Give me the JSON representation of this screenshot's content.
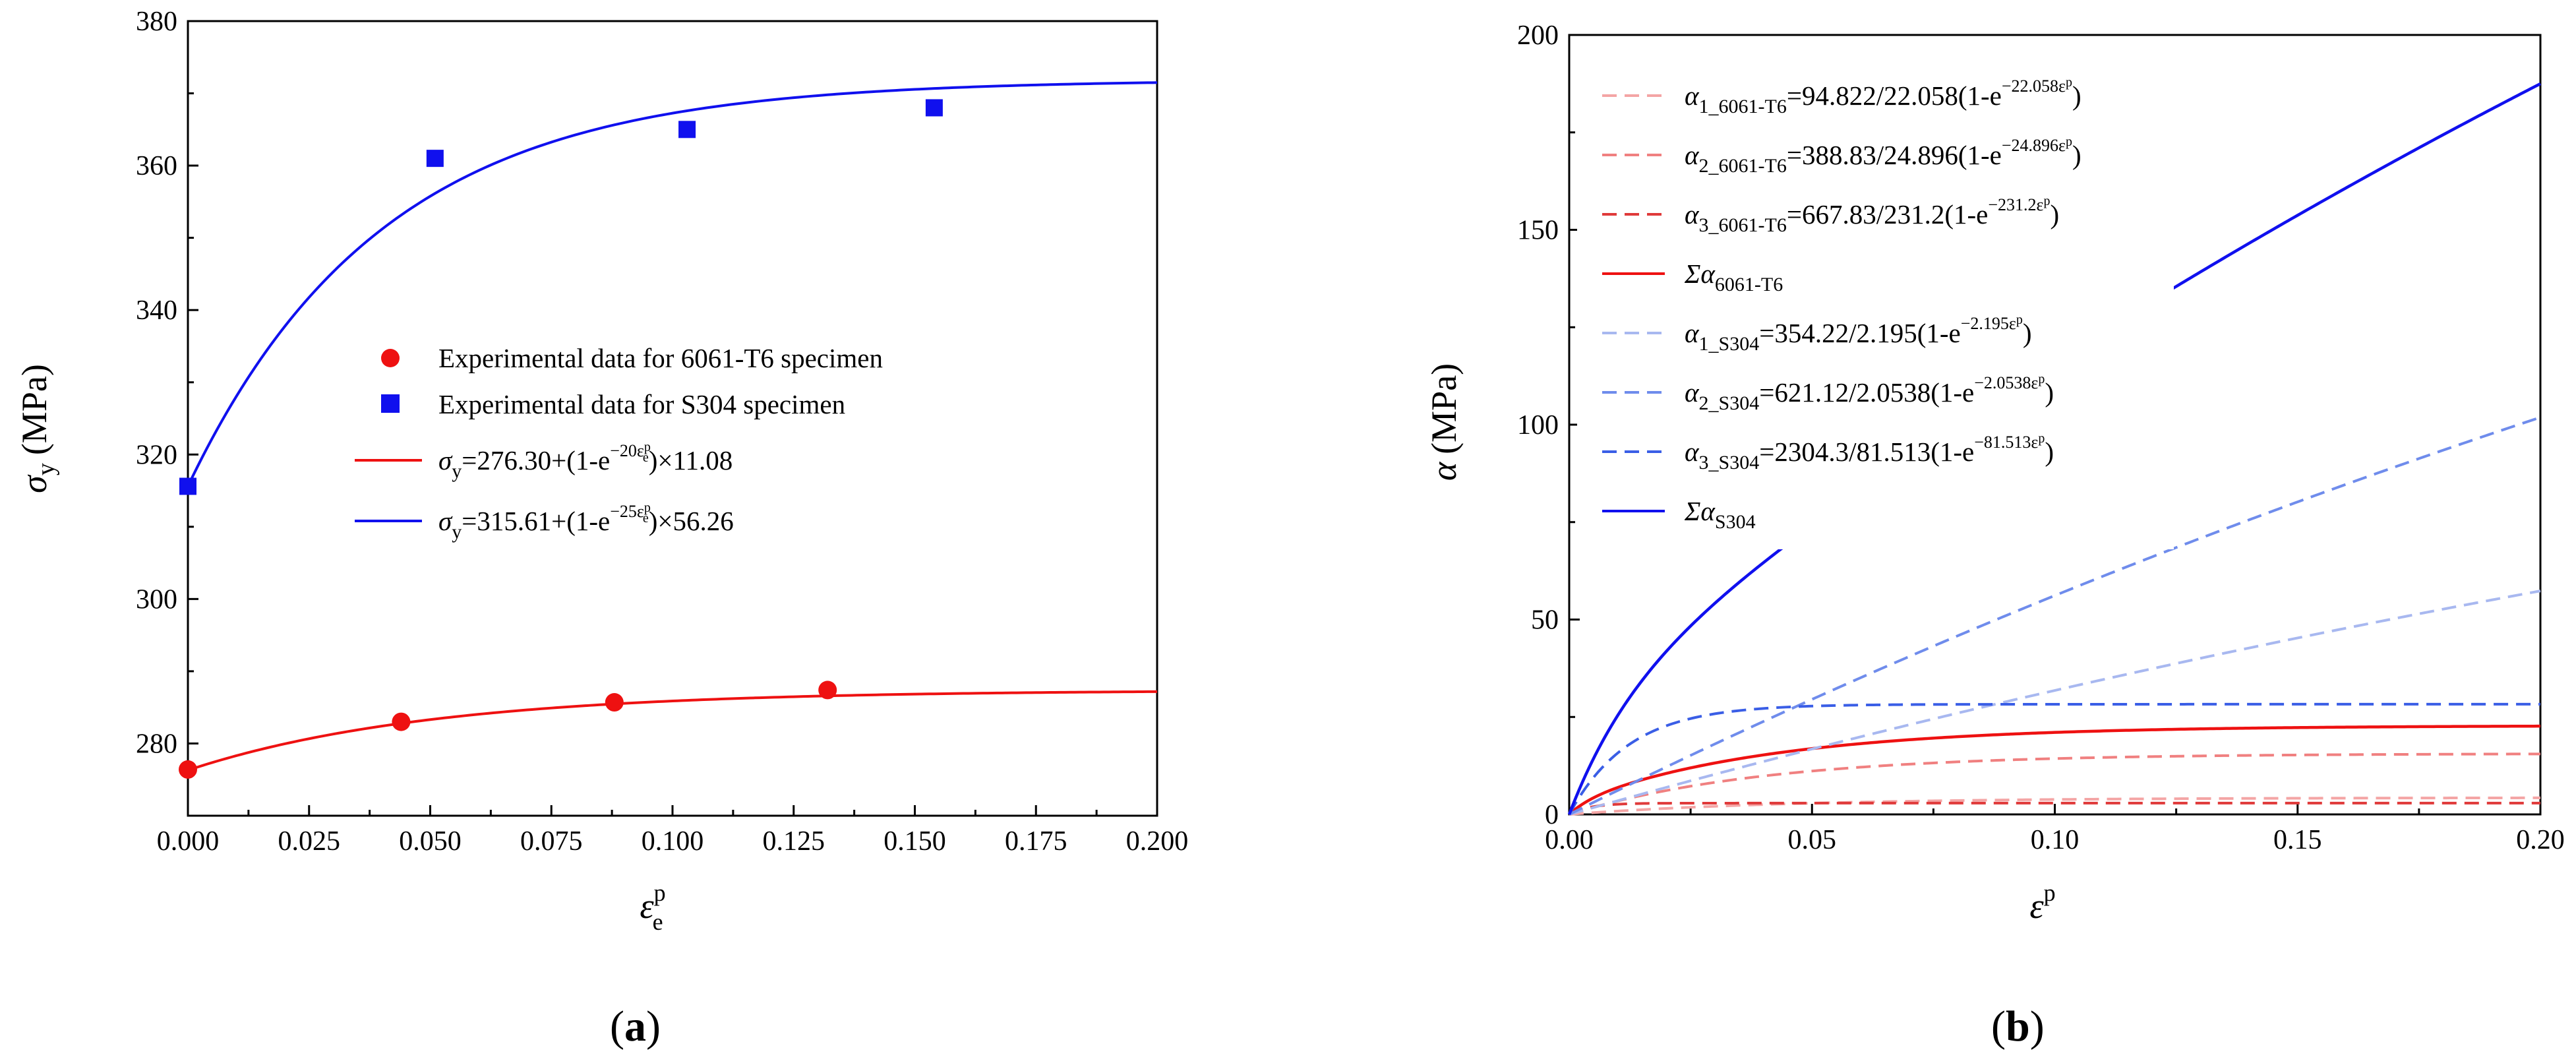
{
  "chart_data": [
    {
      "id": "a",
      "type": "scatter",
      "panel_label": "a",
      "xlabel": "ε_e^p",
      "ylabel": "σ_y (MPa)",
      "xlim": [
        0.0,
        0.2
      ],
      "ylim": [
        270,
        380
      ],
      "x_ticks": [
        "0.000",
        "0.025",
        "0.050",
        "0.075",
        "0.100",
        "0.125",
        "0.150",
        "0.175",
        "0.200"
      ],
      "y_ticks": [
        "280",
        "300",
        "320",
        "340",
        "360",
        "380"
      ],
      "legend_position": "center",
      "series": [
        {
          "name": "Experimental data for 6061-T6 specimen",
          "kind": "points",
          "marker": "circle",
          "color": "#ee1111",
          "x": [
            0.0,
            0.044,
            0.088,
            0.132
          ],
          "y": [
            276.4,
            283.0,
            285.7,
            287.4
          ]
        },
        {
          "name": "Experimental data for S304 specimen",
          "kind": "points",
          "marker": "square",
          "color": "#1010ee",
          "x": [
            0.0,
            0.051,
            0.103,
            0.154
          ],
          "y": [
            315.6,
            361.0,
            365.0,
            368.0
          ]
        },
        {
          "name": "σy=276.30+(1-e^(-20εe^p))×11.08",
          "kind": "fit",
          "color": "#ee1111",
          "base": 276.3,
          "amp": 11.08,
          "rate": 20
        },
        {
          "name": "σy=315.61+(1-e^(-25εe^p))×56.26",
          "kind": "fit",
          "color": "#1010ee",
          "base": 315.61,
          "amp": 56.26,
          "rate": 25
        }
      ],
      "legend": {
        "items": [
          "Experimental data for 6061-T6 specimen",
          "Experimental data for S304 specimen"
        ],
        "fit1": {
          "sym": "σ",
          "sub": "y",
          "eq": "=276.30+(1-e",
          "sup_exp": "−20ε",
          "sup_p": "p",
          "sup_e": "e",
          "tail": ")×11.08"
        },
        "fit2": {
          "sym": "σ",
          "sub": "y",
          "eq": "=315.61+(1-e",
          "sup_exp": "−25ε",
          "sup_p": "p",
          "sup_e": "e",
          "tail": ")×56.26"
        }
      },
      "xlabel_parts": {
        "sym": "ε",
        "sup": "p",
        "sub": "e"
      },
      "ylabel_parts": {
        "sym": "σ",
        "sub": "y",
        "unit": "(MPa)"
      }
    },
    {
      "id": "b",
      "type": "line",
      "panel_label": "b",
      "xlabel": "ε^p",
      "ylabel": "α (MPa)",
      "xlim": [
        0.0,
        0.2
      ],
      "ylim": [
        0,
        200
      ],
      "x_ticks": [
        "0.00",
        "0.05",
        "0.10",
        "0.15",
        "0.20"
      ],
      "y_ticks": [
        "0",
        "50",
        "100",
        "150",
        "200"
      ],
      "legend_position": "top-left",
      "series": [
        {
          "name": "α1_6061-T6=94.822/22.058(1-e^(-22.058ε^p))",
          "C": 94.822,
          "g": 22.058,
          "color": "#f4a5a5",
          "dash": true
        },
        {
          "name": "α2_6061-T6=388.83/24.896(1-e^(-24.896ε^p))",
          "C": 388.83,
          "g": 24.896,
          "color": "#f08080",
          "dash": true
        },
        {
          "name": "α3_6061-T6=667.83/231.2(1-e^(-231.2ε^p))",
          "C": 667.83,
          "g": 231.2,
          "color": "#e03a3a",
          "dash": true
        },
        {
          "name": "Σα6061-T6",
          "sum": [
            0,
            1,
            2
          ],
          "color": "#ee1111",
          "dash": false
        },
        {
          "name": "α1_S304=354.22/2.195(1-e^(-2.195ε^p))",
          "C": 354.22,
          "g": 2.195,
          "color": "#a8b8f0",
          "dash": true
        },
        {
          "name": "α2_S304=621.12/2.0538(1-e^(-2.0538ε^p))",
          "C": 621.12,
          "g": 2.0538,
          "color": "#6f8cec",
          "dash": true
        },
        {
          "name": "α3_S304=2304.3/81.513(1-e^(-81.513ε^p))",
          "C": 2304.3,
          "g": 81.513,
          "color": "#3a5ee6",
          "dash": true
        },
        {
          "name": "ΣαS304",
          "sum": [
            4,
            5,
            6
          ],
          "color": "#1010ee",
          "dash": false
        }
      ],
      "legend": [
        {
          "sym": "α",
          "sub": "1_6061-T6",
          "eq": "=94.822/22.058(1-e",
          "sup": "−22.058ε",
          "supp": "p",
          "tail": ")"
        },
        {
          "sym": "α",
          "sub": "2_6061-T6",
          "eq": "=388.83/24.896(1-e",
          "sup": "−24.896ε",
          "supp": "p",
          "tail": ")"
        },
        {
          "sym": "α",
          "sub": "3_6061-T6",
          "eq": "=667.83/231.2(1-e",
          "sup": "−231.2ε",
          "supp": "p",
          "tail": ")"
        },
        {
          "sym": "Σα",
          "sub": "6061-T6",
          "eq": "",
          "sup": "",
          "supp": "",
          "tail": ""
        },
        {
          "sym": "α",
          "sub": "1_S304",
          "eq": "=354.22/2.195(1-e",
          "sup": "−2.195ε",
          "supp": "p",
          "tail": ")"
        },
        {
          "sym": "α",
          "sub": "2_S304",
          "eq": "=621.12/2.0538(1-e",
          "sup": "−2.0538ε",
          "supp": "p",
          "tail": ")"
        },
        {
          "sym": "α",
          "sub": "3_S304",
          "eq": "=2304.3/81.513(1-e",
          "sup": "−81.513ε",
          "supp": "p",
          "tail": ")"
        },
        {
          "sym": "Σα",
          "sub": "S304",
          "eq": "",
          "sup": "",
          "supp": "",
          "tail": ""
        }
      ],
      "xlabel_parts": {
        "sym": "ε",
        "sup": "p"
      },
      "ylabel_parts": {
        "sym": "α",
        "unit": "(MPa)"
      }
    }
  ]
}
